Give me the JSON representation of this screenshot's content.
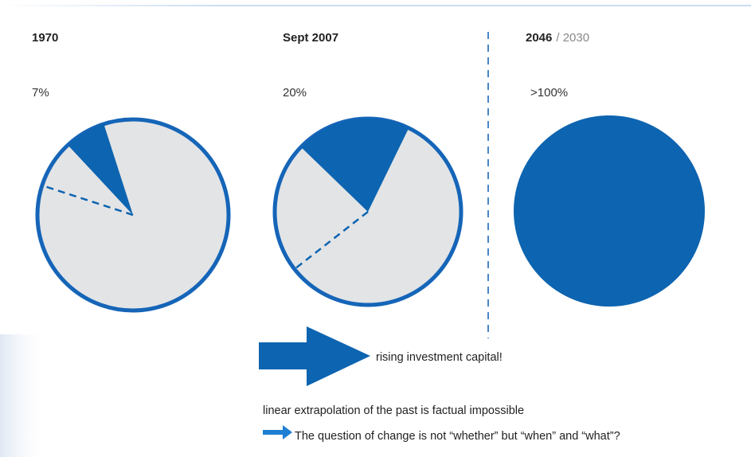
{
  "chart_data": [
    {
      "type": "pie",
      "title": "1970",
      "value": 7,
      "value_label": "7%"
    },
    {
      "type": "pie",
      "title": "Sept 2007",
      "value": 20,
      "value_label": "20%"
    },
    {
      "type": "pie",
      "title": "2046",
      "subtitle": "/ 2030",
      "value": 100,
      "value_label": ">100%"
    }
  ],
  "annotations": {
    "arrow_text": "rising investment capital!",
    "note": "linear extrapolation of the past is factual impossible",
    "question": "The question of change is not “whether” but “when” and “what”?"
  }
}
